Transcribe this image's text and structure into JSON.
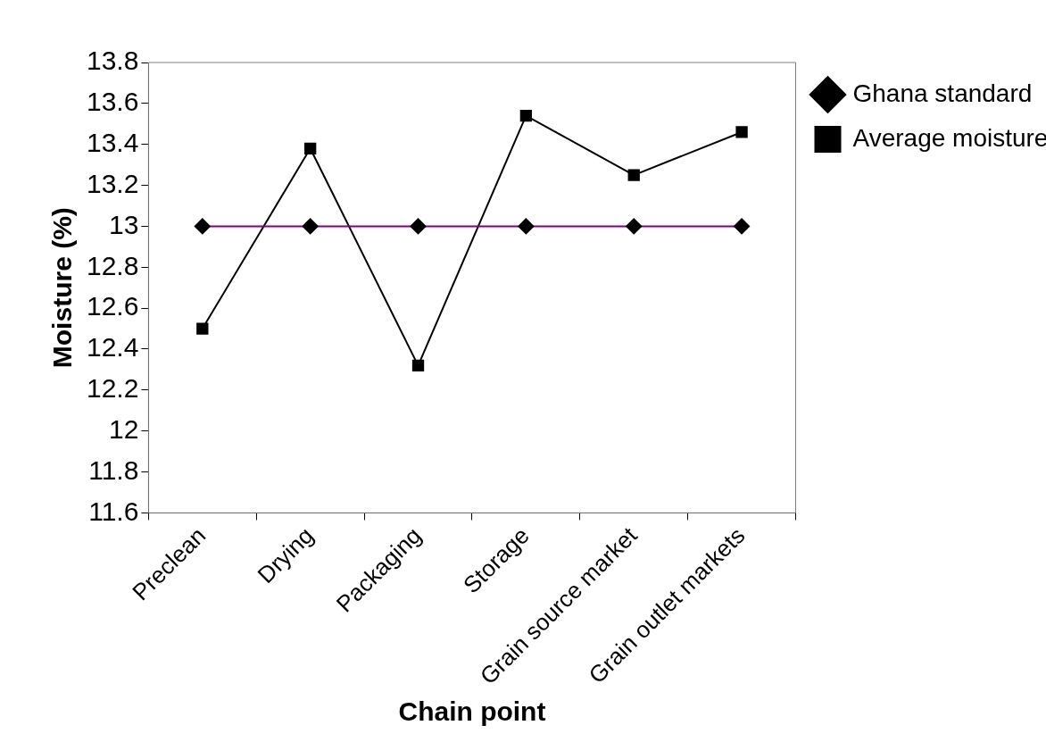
{
  "chart_data": {
    "type": "line",
    "xlabel": "Chain point",
    "ylabel": "Moisture (%)",
    "categories": [
      "Preclean",
      "Drying",
      "Packaging",
      "Storage",
      "Grain source market",
      "Grain outlet markets"
    ],
    "series": [
      {
        "name": "Ghana standard",
        "color": "#800080",
        "marker": "diamond",
        "values": [
          13,
          13,
          13,
          13,
          13,
          13
        ]
      },
      {
        "name": "Average moisture",
        "color": "#000000",
        "marker": "square",
        "values": [
          12.5,
          13.38,
          12.32,
          13.54,
          13.25,
          13.46
        ]
      }
    ],
    "ylim": [
      11.6,
      13.8
    ],
    "yticks": [
      11.6,
      11.8,
      12,
      12.2,
      12.4,
      12.6,
      12.8,
      13,
      13.2,
      13.4,
      13.6,
      13.8
    ],
    "grid": false,
    "legend": "right",
    "line_style": "solid"
  }
}
